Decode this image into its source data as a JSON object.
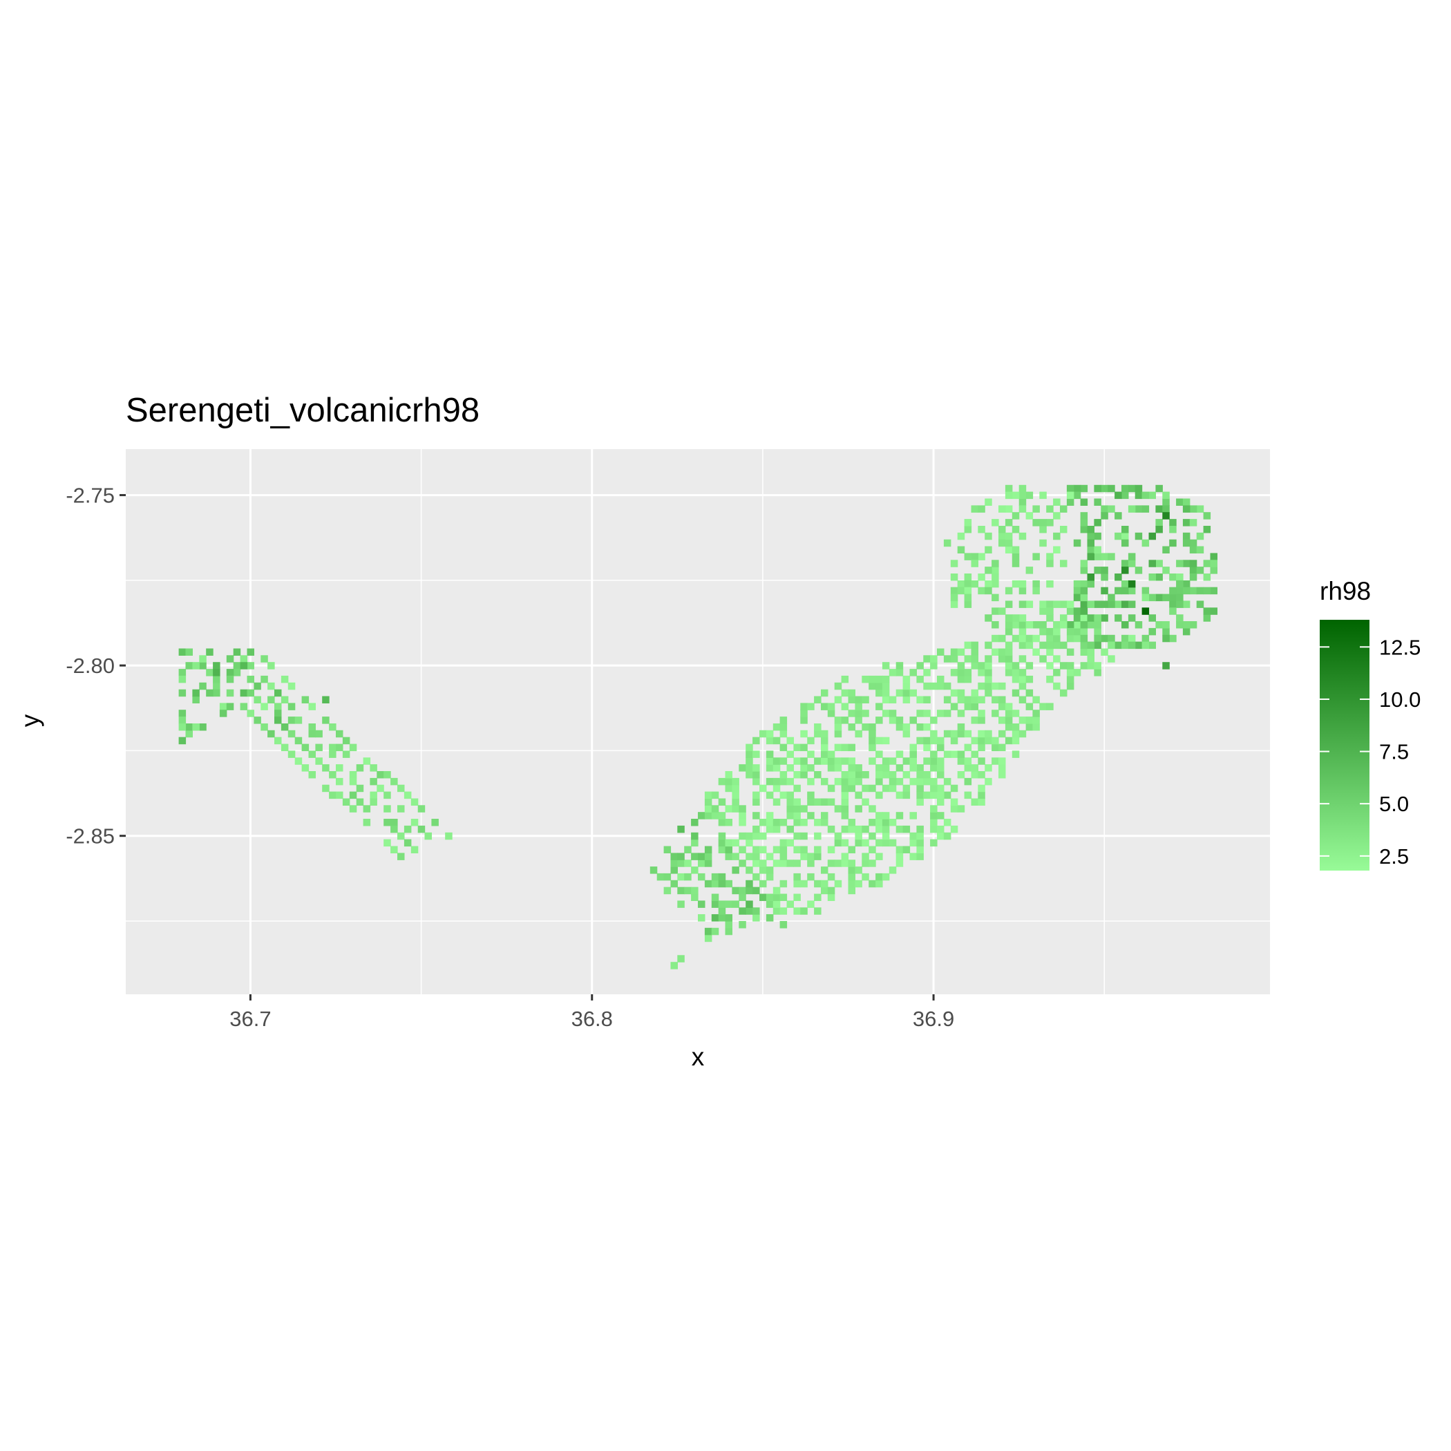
{
  "chart_data": {
    "type": "heatmap",
    "title": "Serengeti_volcanicrh98",
    "xlabel": "x",
    "ylabel": "y",
    "xlim": [
      36.6635,
      36.9985
    ],
    "ylim": [
      -2.8965,
      -2.7365
    ],
    "x_ticks": [
      {
        "value": 36.7,
        "label": "36.7"
      },
      {
        "value": 36.8,
        "label": "36.8"
      },
      {
        "value": 36.9,
        "label": "36.9"
      }
    ],
    "y_ticks": [
      {
        "value": -2.75,
        "label": "-2.75"
      },
      {
        "value": -2.8,
        "label": "-2.80"
      },
      {
        "value": -2.85,
        "label": "-2.85"
      }
    ],
    "grid": true,
    "cell_size": 0.002,
    "color_scale": {
      "name": "rh98",
      "low_color": "#98fb98",
      "high_color": "#006400",
      "min": 1.8,
      "max": 13.8,
      "breaks": [
        {
          "value": 2.5,
          "label": "2.5"
        },
        {
          "value": 5.0,
          "label": "5.0"
        },
        {
          "value": 7.5,
          "label": "7.5"
        },
        {
          "value": 10.0,
          "label": "10.0"
        },
        {
          "value": 12.5,
          "label": "12.5"
        }
      ]
    },
    "legend_position": "right",
    "regions": [
      {
        "name": "west",
        "x_range": [
          36.678,
          36.748
        ],
        "y_range": [
          -2.86,
          -2.795
        ],
        "typical_values": [
          2.5,
          6.5
        ]
      },
      {
        "name": "east",
        "x_range": [
          36.823,
          36.983
        ],
        "y_range": [
          -2.889,
          -2.745
        ],
        "typical_values": [
          2.0,
          13.5
        ]
      }
    ],
    "highlights": [
      {
        "x": 36.962,
        "y": -2.785,
        "value": 13.5
      },
      {
        "x": 36.958,
        "y": -2.777,
        "value": 11.5
      },
      {
        "x": 36.968,
        "y": -2.757,
        "value": 11.0
      },
      {
        "x": 36.955,
        "y": -2.772,
        "value": 10.5
      },
      {
        "x": 36.946,
        "y": -2.775,
        "value": 9.5
      },
      {
        "x": 36.964,
        "y": -2.762,
        "value": 9.0
      },
      {
        "x": 36.968,
        "y": -2.8,
        "value": 8.5
      },
      {
        "x": 36.69,
        "y": -2.803,
        "value": 7.5
      },
      {
        "x": 36.697,
        "y": -2.801,
        "value": 7.0
      },
      {
        "x": 36.722,
        "y": -2.81,
        "value": 7.0
      },
      {
        "x": 36.683,
        "y": -2.809,
        "value": 6.5
      },
      {
        "x": 36.844,
        "y": -2.872,
        "value": 6.0
      },
      {
        "x": 36.838,
        "y": -2.865,
        "value": 5.5
      }
    ]
  }
}
